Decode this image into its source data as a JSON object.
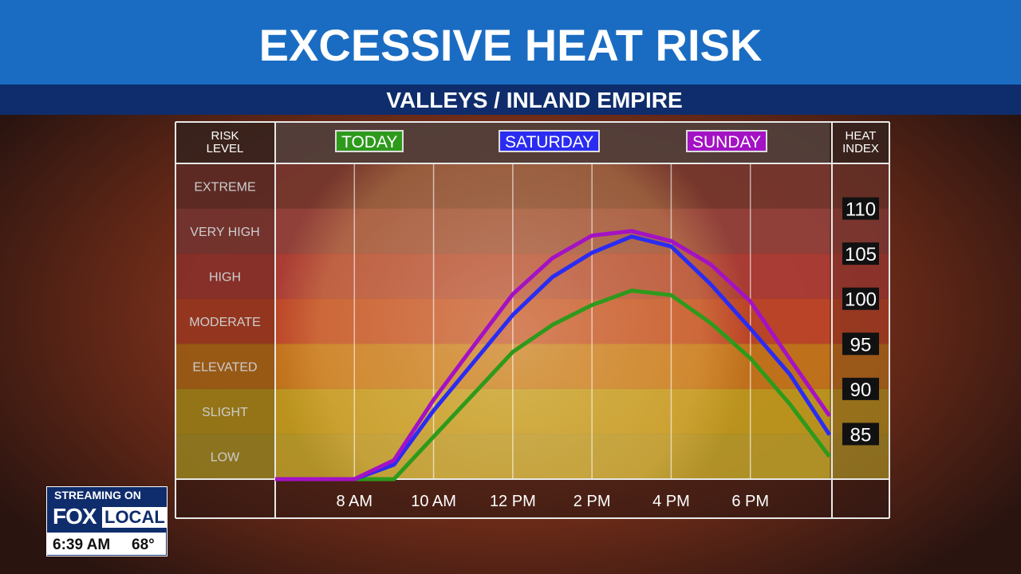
{
  "chart_data": {
    "type": "line",
    "title": "EXCESSIVE HEAT RISK",
    "subtitle": "VALLEYS / INLAND EMPIRE",
    "risk_header": "RISK LEVEL",
    "index_header": "HEAT INDEX",
    "risk_levels": [
      "EXTREME",
      "VERY HIGH",
      "HIGH",
      "MODERATE",
      "ELEVATED",
      "SLIGHT",
      "LOW"
    ],
    "risk_colors": [
      "#7c3a30",
      "#9c4540",
      "#b9413a",
      "#cc4a2a",
      "#d27e1c",
      "#cda61f",
      "#c2a52a"
    ],
    "categories": [
      null,
      null,
      "8 AM",
      null,
      "10 AM",
      null,
      "12 PM",
      null,
      "2 PM",
      null,
      "4 PM",
      null,
      "6 PM",
      null,
      null
    ],
    "series": [
      {
        "name": "TODAY",
        "color": "#2e9a1c",
        "values": [
          80,
          80,
          80,
          80,
          84.7,
          89.4,
          94.1,
          97.1,
          99.3,
          100.9,
          100.4,
          97.3,
          93.4,
          88.3,
          82.5
        ]
      },
      {
        "name": "SATURDAY",
        "color": "#2b2cf2",
        "values": [
          80,
          80,
          80,
          81.6,
          87.6,
          92.9,
          98.2,
          102.4,
          105.1,
          106.9,
          105.8,
          101.6,
          96.7,
          91.6,
          84.9
        ]
      },
      {
        "name": "SUNDAY",
        "color": "#a312c4",
        "values": [
          80,
          80,
          80,
          82.1,
          88.8,
          94.7,
          100.5,
          104.5,
          107,
          107.5,
          106.4,
          103.8,
          99.7,
          93.3,
          87
        ]
      }
    ],
    "ylim": [
      80,
      115
    ],
    "yticks": [
      85,
      90,
      95,
      100,
      105,
      110
    ],
    "grid": true
  },
  "overlay": {
    "streaming": "STREAMING ON",
    "brand_fox": "FOX",
    "brand_local": "LOCAL",
    "time": "6:39 AM",
    "temperature": "68°"
  }
}
